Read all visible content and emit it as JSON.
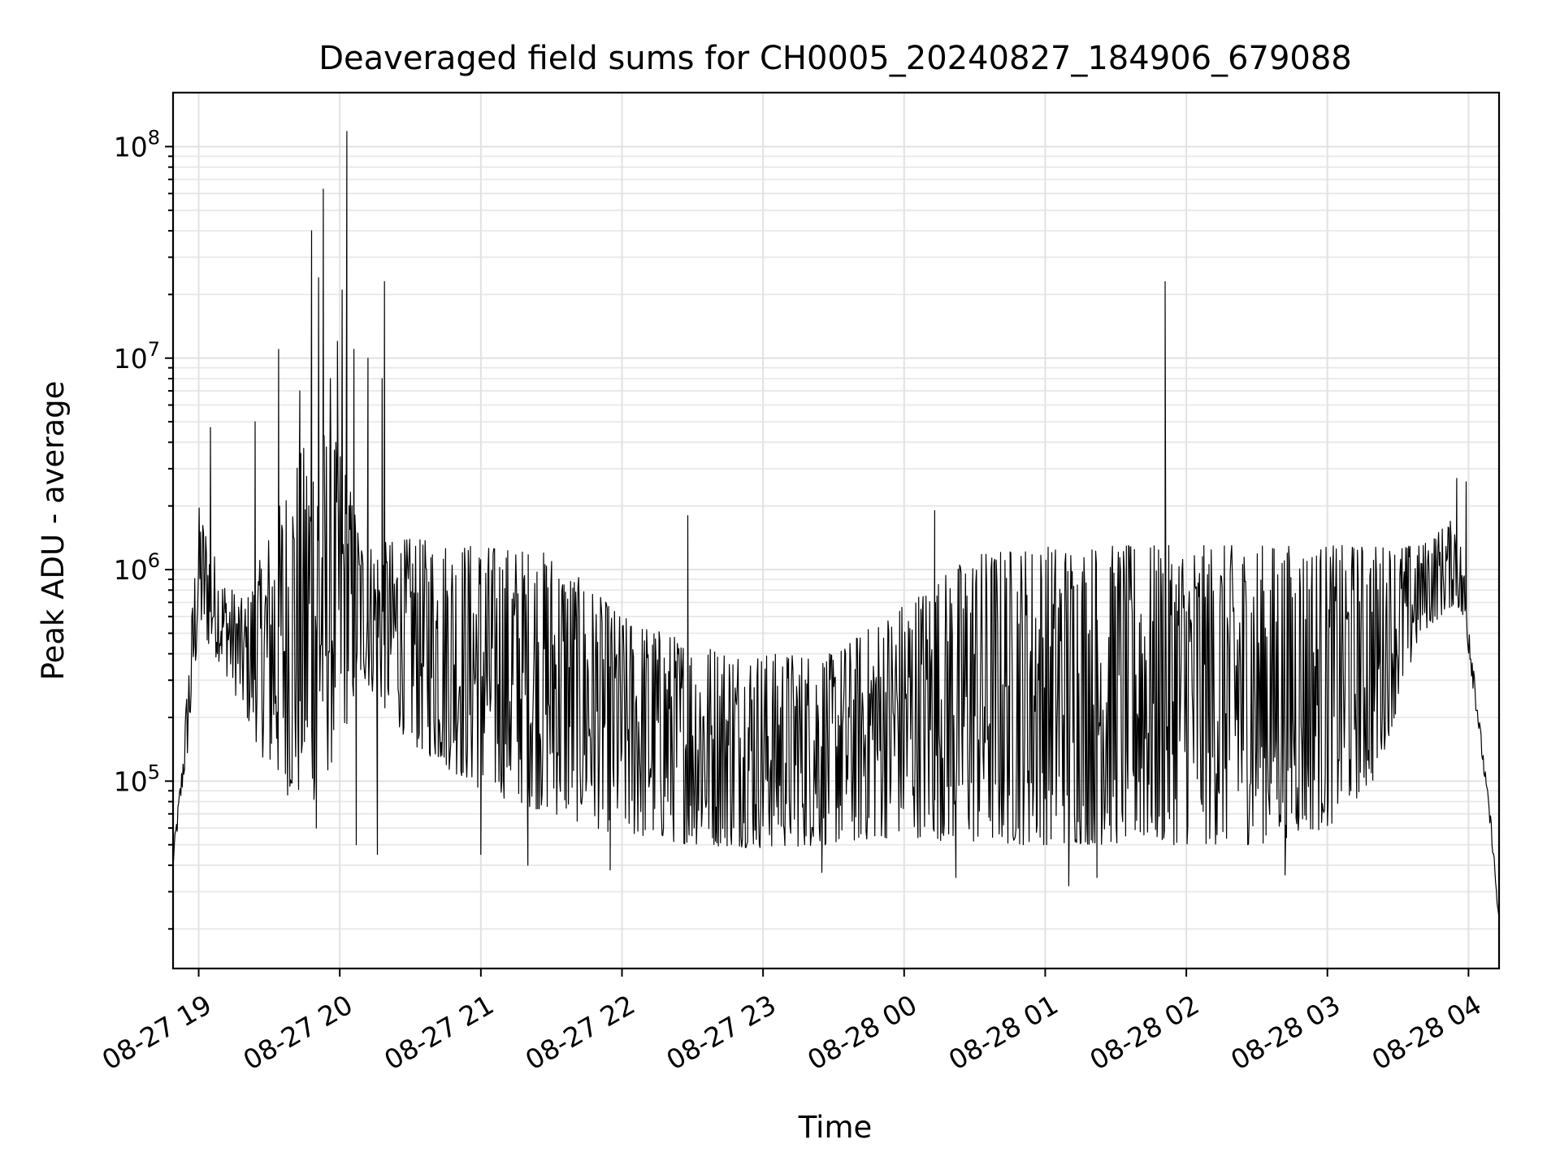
{
  "chart_data": {
    "type": "line",
    "title": "Deaveraged field sums for CH0005_20240827_184906_679088",
    "xlabel": "Time",
    "ylabel": "Peak ADU - average",
    "yscale": "log",
    "ylim": [
      13000,
      180000000
    ],
    "xlim": [
      "2024-08-27 18:49:06",
      "2024-08-28 04:13:00"
    ],
    "grid": "both",
    "x_ticks": [
      {
        "t": "2024-08-27 19:00",
        "label": "08-27 19"
      },
      {
        "t": "2024-08-27 20:00",
        "label": "08-27 20"
      },
      {
        "t": "2024-08-27 21:00",
        "label": "08-27 21"
      },
      {
        "t": "2024-08-27 22:00",
        "label": "08-27 22"
      },
      {
        "t": "2024-08-27 23:00",
        "label": "08-27 23"
      },
      {
        "t": "2024-08-28 00:00",
        "label": "08-28 00"
      },
      {
        "t": "2024-08-28 01:00",
        "label": "08-28 01"
      },
      {
        "t": "2024-08-28 02:00",
        "label": "08-28 02"
      },
      {
        "t": "2024-08-28 03:00",
        "label": "08-28 03"
      },
      {
        "t": "2024-08-28 04:00",
        "label": "08-28 04"
      }
    ],
    "y_ticks": [
      {
        "value": 100000,
        "base": "10",
        "exp": "5"
      },
      {
        "value": 1000000,
        "base": "10",
        "exp": "6"
      },
      {
        "value": 10000000,
        "base": "10",
        "exp": "7"
      },
      {
        "value": 100000000,
        "base": "10",
        "exp": "8"
      }
    ],
    "series": [
      {
        "color": "#000000",
        "envelope": [
          {
            "t": "2024-08-27 18:49",
            "low": 38000,
            "high": 45000
          },
          {
            "t": "2024-08-27 18:53",
            "low": 90000,
            "high": 120000
          },
          {
            "t": "2024-08-27 18:56",
            "low": 150000,
            "high": 400000
          },
          {
            "t": "2024-08-27 19:00",
            "low": 500000,
            "high": 2000000
          },
          {
            "t": "2024-08-27 19:10",
            "low": 350000,
            "high": 900000
          },
          {
            "t": "2024-08-27 19:20",
            "low": 200000,
            "high": 700000
          },
          {
            "t": "2024-08-27 19:30",
            "low": 110000,
            "high": 1500000
          },
          {
            "t": "2024-08-27 19:40",
            "low": 80000,
            "high": 3000000
          },
          {
            "t": "2024-08-27 19:50",
            "low": 80000,
            "high": 5000000
          },
          {
            "t": "2024-08-27 20:00",
            "low": 150000,
            "high": 4000000
          },
          {
            "t": "2024-08-27 20:10",
            "low": 300000,
            "high": 1300000
          },
          {
            "t": "2024-08-27 20:30",
            "low": 150000,
            "high": 1400000
          },
          {
            "t": "2024-08-27 21:00",
            "low": 90000,
            "high": 1300000
          },
          {
            "t": "2024-08-27 21:30",
            "low": 70000,
            "high": 1200000
          },
          {
            "t": "2024-08-27 22:00",
            "low": 55000,
            "high": 600000
          },
          {
            "t": "2024-08-27 22:30",
            "low": 50000,
            "high": 450000
          },
          {
            "t": "2024-08-27 23:00",
            "low": 48000,
            "high": 400000
          },
          {
            "t": "2024-08-27 23:30",
            "low": 50000,
            "high": 400000
          },
          {
            "t": "2024-08-28 00:00",
            "low": 55000,
            "high": 700000
          },
          {
            "t": "2024-08-28 00:30",
            "low": 50000,
            "high": 1200000
          },
          {
            "t": "2024-08-28 01:00",
            "low": 50000,
            "high": 1300000
          },
          {
            "t": "2024-08-28 01:30",
            "low": 50000,
            "high": 1300000
          },
          {
            "t": "2024-08-28 02:00",
            "low": 50000,
            "high": 1300000
          },
          {
            "t": "2024-08-28 02:30",
            "low": 50000,
            "high": 1300000
          },
          {
            "t": "2024-08-28 03:00",
            "low": 60000,
            "high": 1300000
          },
          {
            "t": "2024-08-28 03:20",
            "low": 100000,
            "high": 1300000
          },
          {
            "t": "2024-08-28 03:40",
            "low": 500000,
            "high": 1300000
          },
          {
            "t": "2024-08-28 03:55",
            "low": 700000,
            "high": 1800000
          },
          {
            "t": "2024-08-28 04:00",
            "low": 400000,
            "high": 700000
          },
          {
            "t": "2024-08-28 04:05",
            "low": 150000,
            "high": 180000
          },
          {
            "t": "2024-08-28 04:10",
            "low": 50000,
            "high": 60000
          },
          {
            "t": "2024-08-28 04:13",
            "low": 20000,
            "high": 22000
          }
        ],
        "spikes": [
          {
            "t": "2024-08-27 19:05",
            "value": 4700000
          },
          {
            "t": "2024-08-27 19:24",
            "value": 5000000
          },
          {
            "t": "2024-08-27 19:34",
            "value": 11000000
          },
          {
            "t": "2024-08-27 19:43",
            "value": 7000000
          },
          {
            "t": "2024-08-27 19:48",
            "value": 40000000
          },
          {
            "t": "2024-08-27 19:51",
            "value": 24000000
          },
          {
            "t": "2024-08-27 19:53",
            "value": 63000000
          },
          {
            "t": "2024-08-27 19:56",
            "value": 8000000
          },
          {
            "t": "2024-08-27 19:59",
            "value": 12000000
          },
          {
            "t": "2024-08-27 20:01",
            "value": 21000000
          },
          {
            "t": "2024-08-27 20:03",
            "value": 118000000
          },
          {
            "t": "2024-08-27 20:06",
            "value": 11000000
          },
          {
            "t": "2024-08-27 20:12",
            "value": 10000000
          },
          {
            "t": "2024-08-27 20:18",
            "value": 8000000
          },
          {
            "t": "2024-08-27 20:19",
            "value": 23000000
          },
          {
            "t": "2024-08-27 22:28",
            "value": 1800000
          },
          {
            "t": "2024-08-28 00:13",
            "value": 1900000
          },
          {
            "t": "2024-08-28 01:51",
            "value": 23000000
          },
          {
            "t": "2024-08-28 03:55",
            "value": 2700000
          },
          {
            "t": "2024-08-28 03:59",
            "value": 2600000
          }
        ],
        "dips": [
          {
            "t": "2024-08-27 19:50",
            "value": 60000
          },
          {
            "t": "2024-08-27 20:07",
            "value": 50000
          },
          {
            "t": "2024-08-27 20:16",
            "value": 45000
          },
          {
            "t": "2024-08-27 21:00",
            "value": 45000
          },
          {
            "t": "2024-08-27 21:20",
            "value": 40000
          },
          {
            "t": "2024-08-27 21:55",
            "value": 38000
          },
          {
            "t": "2024-08-27 23:25",
            "value": 37000
          },
          {
            "t": "2024-08-28 00:22",
            "value": 35000
          },
          {
            "t": "2024-08-28 01:10",
            "value": 32000
          },
          {
            "t": "2024-08-28 01:22",
            "value": 35000
          },
          {
            "t": "2024-08-28 02:42",
            "value": 36000
          }
        ]
      }
    ]
  }
}
